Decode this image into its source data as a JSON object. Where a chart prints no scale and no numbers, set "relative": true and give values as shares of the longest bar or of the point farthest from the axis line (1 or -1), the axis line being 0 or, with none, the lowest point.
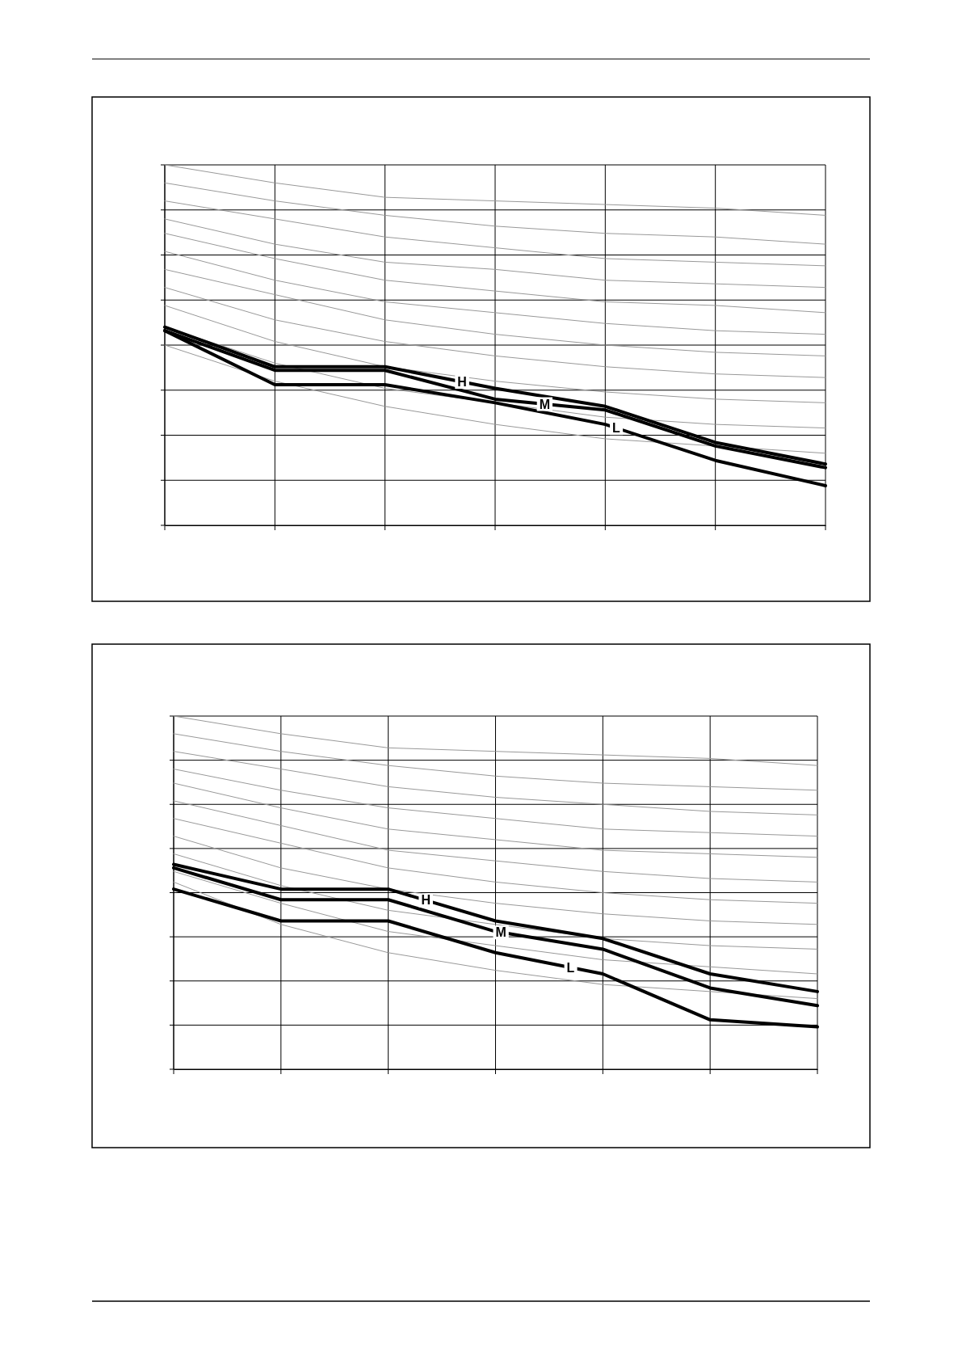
{
  "chart_data": [
    {
      "type": "line",
      "relative": true,
      "grid": true,
      "categories": [
        null,
        null,
        null,
        null,
        null,
        null,
        null
      ],
      "series": [
        {
          "color": "#999999",
          "values": [
            1.0,
            0.95,
            0.91,
            0.9,
            0.89,
            0.88,
            0.86
          ]
        },
        {
          "color": "#999999",
          "values": [
            0.95,
            0.9,
            0.86,
            0.83,
            0.81,
            0.8,
            0.78
          ]
        },
        {
          "color": "#999999",
          "values": [
            0.9,
            0.85,
            0.8,
            0.77,
            0.74,
            0.73,
            0.72
          ]
        },
        {
          "color": "#999999",
          "values": [
            0.85,
            0.78,
            0.73,
            0.71,
            0.68,
            0.67,
            0.66
          ]
        },
        {
          "color": "#999999",
          "values": [
            0.81,
            0.74,
            0.68,
            0.65,
            0.62,
            0.61,
            0.59
          ]
        },
        {
          "color": "#999999",
          "values": [
            0.76,
            0.68,
            0.62,
            0.59,
            0.56,
            0.54,
            0.53
          ]
        },
        {
          "color": "#999999",
          "values": [
            0.71,
            0.64,
            0.57,
            0.53,
            0.5,
            0.48,
            0.47
          ]
        },
        {
          "color": "#999999",
          "values": [
            0.66,
            0.57,
            0.51,
            0.47,
            0.44,
            0.42,
            0.41
          ]
        },
        {
          "color": "#999999",
          "values": [
            0.61,
            0.51,
            0.44,
            0.4,
            0.37,
            0.35,
            0.34
          ]
        },
        {
          "color": "#999999",
          "values": [
            0.55,
            0.45,
            0.38,
            0.34,
            0.3,
            0.28,
            0.27
          ]
        },
        {
          "color": "#999999",
          "values": [
            0.5,
            0.4,
            0.33,
            0.28,
            0.24,
            0.22,
            0.2
          ]
        },
        {
          "name": "H",
          "color": "#000000",
          "values": [
            0.55,
            0.44,
            0.44,
            0.38,
            0.33,
            0.23,
            0.17
          ]
        },
        {
          "name": "M",
          "color": "#000000",
          "values": [
            0.54,
            0.43,
            0.43,
            0.35,
            0.32,
            0.22,
            0.16
          ]
        },
        {
          "name": "L",
          "color": "#000000",
          "values": [
            0.54,
            0.39,
            0.39,
            0.34,
            0.28,
            0.18,
            0.11
          ]
        }
      ]
    },
    {
      "type": "line",
      "relative": true,
      "grid": true,
      "categories": [
        null,
        null,
        null,
        null,
        null,
        null,
        null
      ],
      "series": [
        {
          "color": "#999999",
          "values": [
            1.0,
            0.95,
            0.91,
            0.9,
            0.89,
            0.88,
            0.86
          ]
        },
        {
          "color": "#999999",
          "values": [
            0.95,
            0.9,
            0.86,
            0.83,
            0.81,
            0.8,
            0.79
          ]
        },
        {
          "color": "#999999",
          "values": [
            0.9,
            0.85,
            0.8,
            0.77,
            0.75,
            0.73,
            0.72
          ]
        },
        {
          "color": "#999999",
          "values": [
            0.85,
            0.79,
            0.74,
            0.71,
            0.68,
            0.67,
            0.66
          ]
        },
        {
          "color": "#999999",
          "values": [
            0.81,
            0.74,
            0.68,
            0.65,
            0.62,
            0.61,
            0.6
          ]
        },
        {
          "color": "#999999",
          "values": [
            0.76,
            0.69,
            0.62,
            0.59,
            0.56,
            0.54,
            0.53
          ]
        },
        {
          "color": "#999999",
          "values": [
            0.71,
            0.64,
            0.57,
            0.53,
            0.5,
            0.48,
            0.47
          ]
        },
        {
          "color": "#999999",
          "values": [
            0.66,
            0.57,
            0.51,
            0.47,
            0.44,
            0.42,
            0.41
          ]
        },
        {
          "color": "#999999",
          "values": [
            0.61,
            0.52,
            0.45,
            0.41,
            0.37,
            0.35,
            0.34
          ]
        },
        {
          "color": "#999999",
          "values": [
            0.56,
            0.47,
            0.39,
            0.35,
            0.31,
            0.29,
            0.27
          ]
        },
        {
          "color": "#999999",
          "values": [
            0.53,
            0.41,
            0.33,
            0.28,
            0.24,
            0.22,
            0.2
          ]
        },
        {
          "name": "H",
          "color": "#000000",
          "values": [
            0.58,
            0.51,
            0.51,
            0.42,
            0.37,
            0.27,
            0.22
          ]
        },
        {
          "name": "M",
          "color": "#000000",
          "values": [
            0.57,
            0.48,
            0.48,
            0.39,
            0.34,
            0.23,
            0.18
          ]
        },
        {
          "name": "L",
          "color": "#000000",
          "values": [
            0.51,
            0.42,
            0.42,
            0.33,
            0.27,
            0.14,
            0.12
          ]
        }
      ]
    }
  ]
}
